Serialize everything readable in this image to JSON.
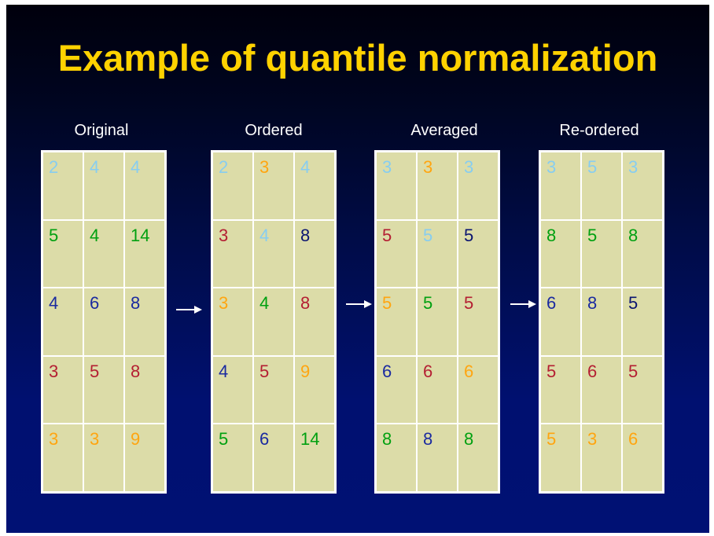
{
  "slide": {
    "title": "Example of quantile normalization",
    "colors": {
      "background_top": "#00000c",
      "background_bottom": "#001174",
      "title": "#ffd200",
      "label": "#ffffff",
      "cell_bg": "#dcdca8",
      "grid_border": "#ffffff"
    },
    "palette": {
      "lightblue": "#87cdf0",
      "green": "#00a010",
      "blue": "#1a2aa0",
      "navy": "#0a1470",
      "red": "#b41e32",
      "orange": "#ffa510"
    },
    "panels": [
      {
        "label": "Original",
        "rows": [
          [
            {
              "v": "2",
              "c": "lightblue"
            },
            {
              "v": "4",
              "c": "lightblue"
            },
            {
              "v": "4",
              "c": "lightblue"
            }
          ],
          [
            {
              "v": "5",
              "c": "green"
            },
            {
              "v": "4",
              "c": "green"
            },
            {
              "v": "14",
              "c": "green"
            }
          ],
          [
            {
              "v": "4",
              "c": "blue"
            },
            {
              "v": "6",
              "c": "blue"
            },
            {
              "v": "8",
              "c": "blue"
            }
          ],
          [
            {
              "v": "3",
              "c": "red"
            },
            {
              "v": "5",
              "c": "red"
            },
            {
              "v": "8",
              "c": "red"
            }
          ],
          [
            {
              "v": "3",
              "c": "orange"
            },
            {
              "v": "3",
              "c": "orange"
            },
            {
              "v": "9",
              "c": "orange"
            }
          ]
        ]
      },
      {
        "label": "Ordered",
        "rows": [
          [
            {
              "v": "2",
              "c": "lightblue"
            },
            {
              "v": "3",
              "c": "orange"
            },
            {
              "v": "4",
              "c": "lightblue"
            }
          ],
          [
            {
              "v": "3",
              "c": "red"
            },
            {
              "v": "4",
              "c": "lightblue"
            },
            {
              "v": "8",
              "c": "navy"
            }
          ],
          [
            {
              "v": "3",
              "c": "orange"
            },
            {
              "v": "4",
              "c": "green"
            },
            {
              "v": "8",
              "c": "red"
            }
          ],
          [
            {
              "v": "4",
              "c": "blue"
            },
            {
              "v": "5",
              "c": "red"
            },
            {
              "v": "9",
              "c": "orange"
            }
          ],
          [
            {
              "v": "5",
              "c": "green"
            },
            {
              "v": "6",
              "c": "blue"
            },
            {
              "v": "14",
              "c": "green"
            }
          ]
        ]
      },
      {
        "label": "Averaged",
        "rows": [
          [
            {
              "v": "3",
              "c": "lightblue"
            },
            {
              "v": "3",
              "c": "orange"
            },
            {
              "v": "3",
              "c": "lightblue"
            }
          ],
          [
            {
              "v": "5",
              "c": "red"
            },
            {
              "v": "5",
              "c": "lightblue"
            },
            {
              "v": "5",
              "c": "navy"
            }
          ],
          [
            {
              "v": "5",
              "c": "orange"
            },
            {
              "v": "5",
              "c": "green"
            },
            {
              "v": "5",
              "c": "red"
            }
          ],
          [
            {
              "v": "6",
              "c": "blue"
            },
            {
              "v": "6",
              "c": "red"
            },
            {
              "v": "6",
              "c": "orange"
            }
          ],
          [
            {
              "v": "8",
              "c": "green"
            },
            {
              "v": "8",
              "c": "blue"
            },
            {
              "v": "8",
              "c": "green"
            }
          ]
        ]
      },
      {
        "label": "Re-ordered",
        "rows": [
          [
            {
              "v": "3",
              "c": "lightblue"
            },
            {
              "v": "5",
              "c": "lightblue"
            },
            {
              "v": "3",
              "c": "lightblue"
            }
          ],
          [
            {
              "v": "8",
              "c": "green"
            },
            {
              "v": "5",
              "c": "green"
            },
            {
              "v": "8",
              "c": "green"
            }
          ],
          [
            {
              "v": "6",
              "c": "blue"
            },
            {
              "v": "8",
              "c": "blue"
            },
            {
              "v": "5",
              "c": "navy"
            }
          ],
          [
            {
              "v": "5",
              "c": "red"
            },
            {
              "v": "6",
              "c": "red"
            },
            {
              "v": "5",
              "c": "red"
            }
          ],
          [
            {
              "v": "5",
              "c": "orange"
            },
            {
              "v": "3",
              "c": "orange"
            },
            {
              "v": "6",
              "c": "orange"
            }
          ]
        ]
      }
    ],
    "arrows": [
      {
        "name": "arrow-original-to-ordered",
        "icon": "right-arrow-icon"
      },
      {
        "name": "arrow-ordered-to-averaged",
        "icon": "right-arrow-icon"
      },
      {
        "name": "arrow-averaged-to-reordered",
        "icon": "right-arrow-icon"
      }
    ]
  }
}
